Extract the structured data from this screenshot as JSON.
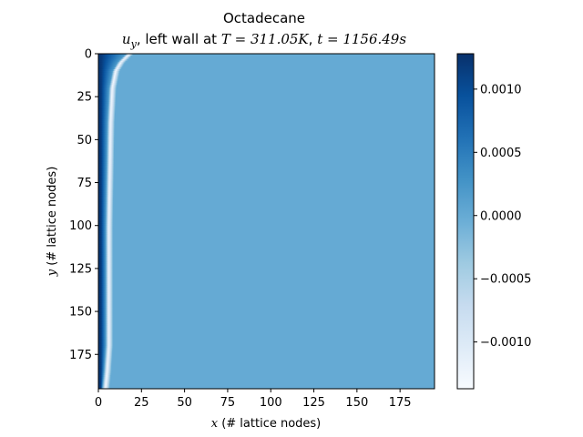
{
  "chart_data": {
    "type": "heatmap",
    "title": "Octadecane",
    "subtitle": {
      "variable": "u",
      "variable_subscript": "y",
      "text_mid": ", left wall at ",
      "temp_symbol": "T",
      "temp_value": " = 311.05K",
      "sep": ", ",
      "time_symbol": "t",
      "time_value": " = 1156.49s"
    },
    "xlabel": {
      "symbol": "x",
      "text": " (# lattice nodes)"
    },
    "ylabel": {
      "symbol": "y",
      "text": " (# lattice nodes)"
    },
    "xlim": [
      0,
      195
    ],
    "ylim": [
      195,
      0
    ],
    "x_ticks": [
      0,
      25,
      50,
      75,
      100,
      125,
      150,
      175
    ],
    "y_ticks": [
      0,
      25,
      50,
      75,
      100,
      125,
      150,
      175
    ],
    "colorbar": {
      "colormap": "Blues",
      "range": [
        -0.00137,
        0.00128
      ],
      "ticks": [
        0.001,
        0.0005,
        0.0,
        -0.0005,
        -0.001
      ],
      "tick_labels": [
        "0.0010",
        "0.0005",
        "0.0000",
        "−0.0005",
        "−0.0010"
      ]
    },
    "field": {
      "background_value": 0.0,
      "description_profile": [
        {
          "y": 0,
          "front_x": 18
        },
        {
          "y": 5,
          "front_x": 13
        },
        {
          "y": 10,
          "front_x": 10
        },
        {
          "y": 20,
          "front_x": 8
        },
        {
          "y": 40,
          "front_x": 7
        },
        {
          "y": 100,
          "front_x": 6
        },
        {
          "y": 170,
          "front_x": 6
        },
        {
          "y": 185,
          "front_x": 5
        },
        {
          "y": 195,
          "front_x": 4
        }
      ],
      "wall_value": 0.0012,
      "front_value": -0.0013
    }
  }
}
